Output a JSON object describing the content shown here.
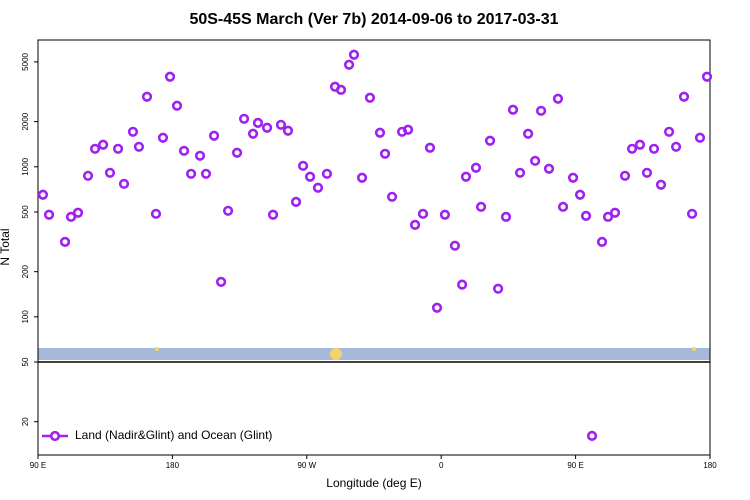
{
  "chart_data": {
    "type": "scatter",
    "title": "50S-45S March (Ver 7b)   2014-09-06 to 2017-03-31",
    "xlabel": "Longitude (deg E)",
    "ylabel": "N Total",
    "log_y": true,
    "xlim": [
      90,
      540
    ],
    "ylim": [
      12,
      7000
    ],
    "xticks": [
      {
        "value": 90,
        "label": "90 E"
      },
      180,
      {
        "value": 270,
        "label": "90 W"
      },
      {
        "value": 360,
        "label": "0"
      },
      {
        "value": 450,
        "label": "90 E"
      },
      {
        "value": 540,
        "label": "180"
      }
    ],
    "yticks": [
      20,
      50,
      100,
      200,
      500,
      1000,
      2000,
      5000
    ],
    "legend": "lower left",
    "series": [
      {
        "name": "Land (Nadir&Glint) and Ocean (Glint)",
        "color": "#a020f0",
        "x": [
          93.3,
          97.4,
          108.1,
          112.1,
          116.8,
          123.5,
          128.2,
          133.6,
          138.2,
          143.6,
          147.6,
          153.6,
          157.6,
          163.0,
          169.0,
          173.7,
          178.4,
          183.1,
          187.8,
          192.5,
          198.5,
          202.5,
          207.9,
          212.6,
          217.3,
          223.3,
          228.0,
          234.0,
          237.3,
          243.4,
          247.4,
          252.7,
          257.4,
          262.8,
          267.5,
          272.2,
          277.5,
          283.5,
          288.9,
          292.9,
          298.3,
          301.6,
          307.0,
          312.3,
          319.0,
          322.4,
          327.1,
          333.8,
          337.8,
          342.5,
          347.8,
          352.5,
          357.2,
          362.5,
          369.2,
          374.0,
          376.6,
          383.3,
          386.7,
          392.7,
          398.1,
          403.4,
          408.1,
          412.8,
          418.2,
          422.9,
          426.9,
          432.2,
          438.2,
          441.6,
          448.3,
          453.0,
          457.0,
          461.0,
          467.7,
          471.7,
          476.4,
          483.1,
          487.8,
          493.1,
          497.8,
          502.5,
          507.2,
          512.6,
          517.3,
          522.6,
          528.0,
          533.3,
          538.0
        ],
        "values": [
          651,
          479,
          316,
          464,
          494,
          871,
          1318,
          1403,
          912,
          1318,
          770,
          1711,
          1359,
          2929,
          486,
          1561,
          3981,
          2551,
          1278,
          898,
          1184,
          898,
          1610,
          171,
          509,
          1240,
          2089,
          1660,
          1963,
          1820,
          479,
          1905,
          1738,
          584,
          1015,
          858,
          725,
          898,
          3415,
          3258,
          4786,
          5580,
          845,
          2884,
          1686,
          1221,
          631,
          1711,
          1765,
          410,
          486,
          1339,
          115,
          479,
          298,
          164,
          858,
          985,
          541,
          1491,
          154,
          464,
          2399,
          912,
          1660,
          1096,
          2361,
          970,
          2840,
          541,
          845,
          651,
          471,
          16.1,
          316,
          464,
          494,
          871,
          1318,
          1403,
          912,
          1318,
          759,
          1711,
          1359,
          2929,
          486,
          1561,
          3981
        ]
      }
    ]
  }
}
